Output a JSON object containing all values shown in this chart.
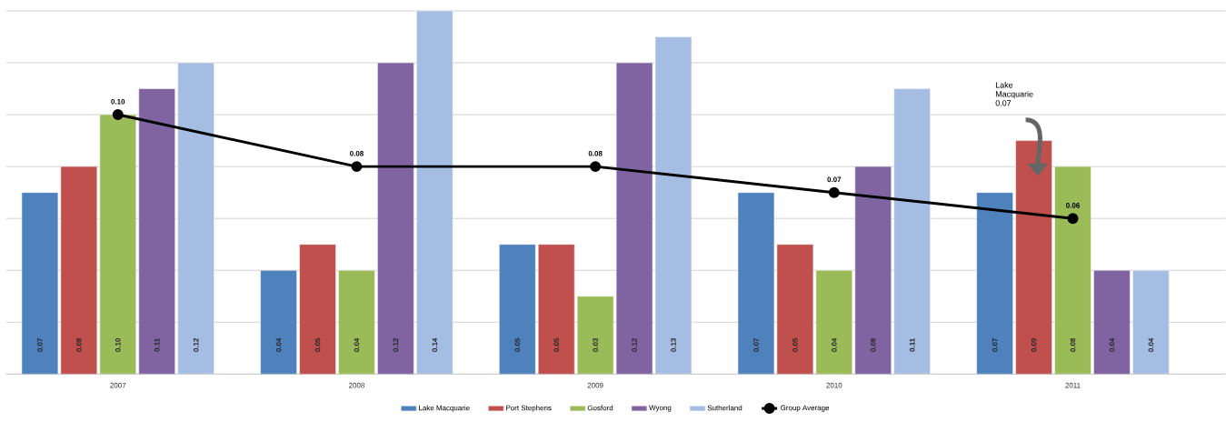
{
  "chart_data": {
    "type": "bar",
    "categories": [
      "2007",
      "2008",
      "2009",
      "2010",
      "2011"
    ],
    "series": [
      {
        "name": "Lake Macquarie",
        "color": "#4f81bd",
        "values": [
          0.07,
          0.04,
          0.05,
          0.07,
          0.07
        ],
        "value_labels": [
          "0.07",
          "0.04",
          "0.05",
          "0.07",
          "0.07"
        ]
      },
      {
        "name": "Port Stephens",
        "color": "#c0504d",
        "values": [
          0.08,
          0.05,
          0.05,
          0.05,
          0.09
        ],
        "value_labels": [
          "0.08",
          "0.05",
          "0.05",
          "0.05",
          "0.09"
        ]
      },
      {
        "name": "Gosford",
        "color": "#9bbb59",
        "values": [
          0.1,
          0.04,
          0.03,
          0.04,
          0.08
        ],
        "value_labels": [
          "0.10",
          "0.04",
          "0.03",
          "0.04",
          "0.08"
        ]
      },
      {
        "name": "Wyong",
        "color": "#8064a2",
        "values": [
          0.11,
          0.12,
          0.12,
          0.08,
          0.04
        ],
        "value_labels": [
          "0.11",
          "0.12",
          "0.12",
          "0.08",
          "0.04"
        ]
      },
      {
        "name": "Sutherland",
        "color": "#a5bde3",
        "values": [
          0.12,
          0.14,
          0.13,
          0.11,
          0.04
        ],
        "value_labels": [
          "0.12",
          "0.14",
          "0.13",
          "0.11",
          "0.04"
        ]
      },
      {
        "name": "Group Average",
        "color": "#000000",
        "type": "line",
        "marker": "circle",
        "values": [
          0.1,
          0.08,
          0.08,
          0.07,
          0.06
        ],
        "value_labels": [
          "0.10",
          "0.08",
          "0.08",
          "0.07",
          "0.06"
        ]
      }
    ],
    "ylim": [
      0,
      0.14
    ],
    "yticks": [
      {
        "value": 0,
        "label": null
      },
      {
        "value": 0.02,
        "label": null
      },
      {
        "value": 0.04,
        "label": null
      },
      {
        "value": 0.06,
        "label": null
      },
      {
        "value": 0.08,
        "label": null
      },
      {
        "value": 0.1,
        "label": null
      },
      {
        "value": 0.12,
        "label": null
      },
      {
        "value": 0.14,
        "label": null
      }
    ],
    "tick_labels": "x",
    "grid": "y",
    "legend": "bottom",
    "annotations": [
      "Lake Macquarie 0.07"
    ]
  }
}
